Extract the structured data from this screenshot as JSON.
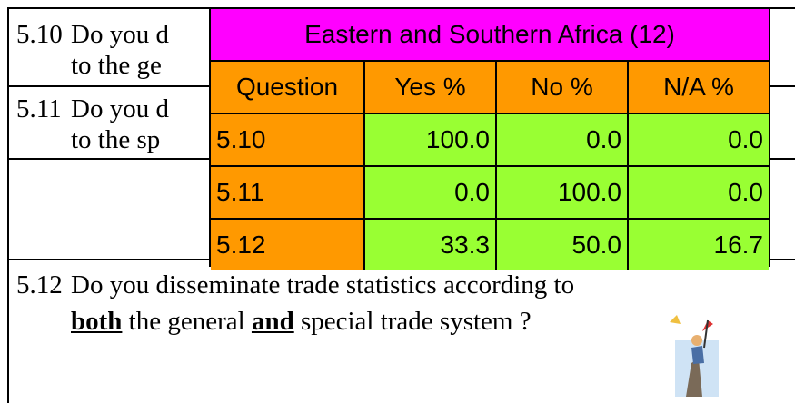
{
  "questions": [
    {
      "number": "5.10",
      "lines": [
        "Do you d",
        "to the ge"
      ]
    },
    {
      "number": "5.11",
      "lines": [
        "Do you d",
        "to the sp"
      ]
    },
    {
      "number": "5.12",
      "line1": "Do you disseminate trade statistics according to",
      "line2": [
        {
          "text": "both",
          "strong": true
        },
        {
          "text": " the general ",
          "strong": false
        },
        {
          "text": "and",
          "strong": true
        },
        {
          "text": " special trade system ?",
          "strong": false
        }
      ]
    }
  ],
  "overlay": {
    "title": "Eastern and Southern Africa (12)",
    "header": [
      "Question",
      "Yes %",
      "No %",
      "N/A %"
    ],
    "rows": [
      [
        "5.10",
        "100.0",
        "0.0",
        "0.0"
      ],
      [
        "5.11",
        "0.0",
        "100.0",
        "0.0"
      ],
      [
        "5.12",
        "33.3",
        "50.0",
        "16.7"
      ]
    ]
  }
}
